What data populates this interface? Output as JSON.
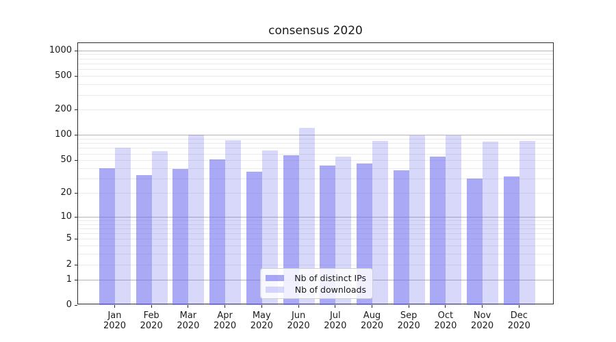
{
  "figure": {
    "title": "consensus 2020"
  },
  "chart_data": {
    "type": "bar",
    "title": "consensus 2020",
    "months": [
      "Jan",
      "Feb",
      "Mar",
      "Apr",
      "May",
      "Jun",
      "Jul",
      "Aug",
      "Sep",
      "Oct",
      "Nov",
      "Dec"
    ],
    "year": "2020",
    "series": [
      {
        "name": "Nb of distinct IPs",
        "color": "rgba(106,106,240,0.58)",
        "values": [
          40,
          33,
          39,
          51,
          36,
          57,
          43,
          46,
          38,
          55,
          30,
          32
        ]
      },
      {
        "name": "Nb of downloads",
        "color": "rgba(106,106,240,0.26)",
        "values": [
          70,
          64,
          100,
          86,
          65,
          122,
          55,
          85,
          99,
          98,
          84,
          85
        ]
      }
    ],
    "yscale": "symlog-log1p",
    "ylim": [
      0,
      1000
    ],
    "yticks": [
      0,
      1,
      2,
      5,
      10,
      20,
      50,
      100,
      200,
      500,
      1000
    ],
    "grid": true,
    "legend_position": "lower center",
    "colors": {
      "bar_base": "#6a6af0",
      "major_grid": "#b4b4b4",
      "minor_grid": "#eaeaea",
      "spine": "#2b2b2b"
    }
  }
}
